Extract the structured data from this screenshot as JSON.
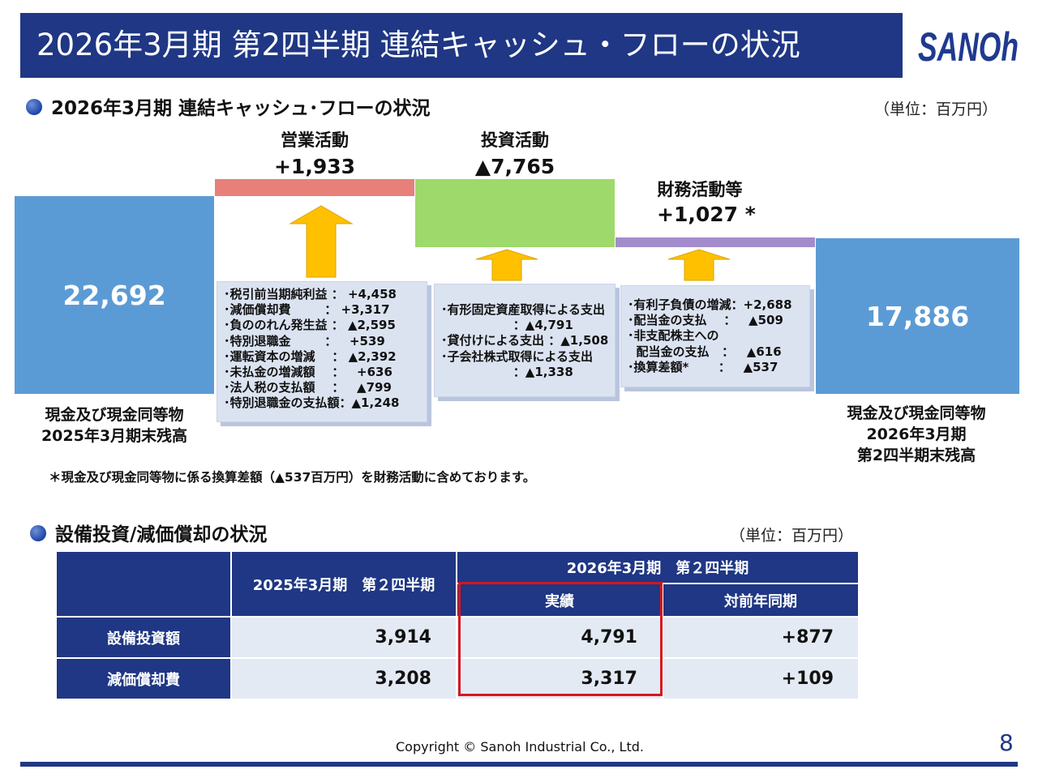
{
  "header": {
    "title": "2026年3月期 第2四半期 連結キャッシュ・フローの状況",
    "logo_text": "SANOh"
  },
  "cashflow_section": {
    "heading": "2026年3月期 連結キャッシュ･フローの状況",
    "unit": "（単位：百万円）",
    "start_label_line1": "現金及び現金同等物",
    "start_label_line2": "2025年3月期末残高",
    "end_label_line1": "現金及び現金同等物",
    "end_label_line2": "2026年3月期",
    "end_label_line3": "第2四半期末残高",
    "operating": {
      "title": "営業活動",
      "value_text": "+1,933",
      "details": [
        "･税引前当期純利益 ： +4,458",
        "･減価償却費        ： +3,317",
        "･負ののれん発生益 ： ▲2,595",
        "･特別退職金        ：   +539",
        "･運転資本の増減    ： ▲2,392",
        "･未払金の増減額    ：   +636",
        "･法人税の支払額    ：   ▲799",
        "･特別退職金の支払額：▲1,248"
      ]
    },
    "investing": {
      "title": "投資活動",
      "value_text": "▲7,765",
      "details": [
        "･有形固定資産取得による支出",
        "                 ：▲4,791",
        "･貸付けによる支出 ：▲1,508",
        "･子会社株式取得による支出",
        "                 ：▲1,338"
      ]
    },
    "financing": {
      "title": "財務活動等",
      "value_text": "+1,027 *",
      "details": [
        "･有利子負債の増減：+2,688",
        "･配当金の支払    ：   ▲509",
        "･非支配株主への",
        "  配当金の支払   ：   ▲616",
        "･換算差額*       ：   ▲537"
      ]
    },
    "footnote": "＊現金及び現金同等物に係る換算差額（▲537百万円）を財務活動に含めております。",
    "colors": {
      "balance": "#5b9bd5",
      "operating": "#e8807a",
      "investing": "#9ed96b",
      "financing": "#a38ccc",
      "arrow": "#ffc000"
    }
  },
  "chart_data": {
    "type": "bar",
    "subtype": "waterfall",
    "categories": [
      "現金及び現金同等物 2025年3月期末残高",
      "営業活動",
      "投資活動",
      "財務活動等",
      "現金及び現金同等物 2026年3月期 第2四半期末残高"
    ],
    "values": [
      22692,
      1933,
      -7765,
      1027,
      17886
    ],
    "value_labels": [
      "22,692",
      "+1,933",
      "▲7,765",
      "+1,027 *",
      "17,886"
    ],
    "unit": "（単位：百万円）"
  },
  "capex_section": {
    "heading": "設備投資/減価償却の状況",
    "unit": "（単位：百万円）",
    "table": {
      "header_prev": "2025年3月期　第２四半期",
      "header_curr_group": "2026年3月期　第２四半期",
      "header_actual": "実績",
      "header_yoy": "対前年同期",
      "rows": [
        {
          "label": "設備投資額",
          "prev": "3,914",
          "actual": "4,791",
          "yoy": "+877"
        },
        {
          "label": "減価償却費",
          "prev": "3,208",
          "actual": "3,317",
          "yoy": "+109"
        }
      ]
    }
  },
  "footer": {
    "copyright": "Copyright © Sanoh Industrial Co., Ltd.",
    "page_number": "8"
  }
}
